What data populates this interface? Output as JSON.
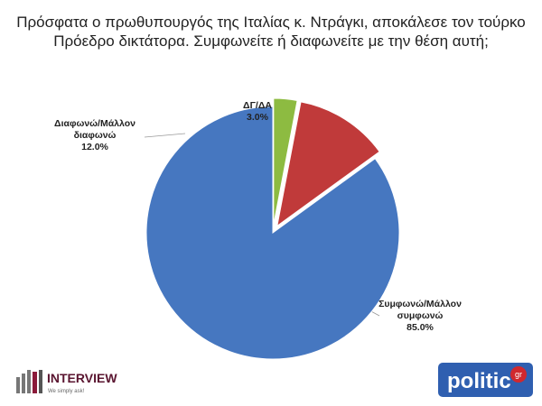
{
  "chart_data": {
    "type": "pie",
    "title": "Πρόσφατα ο πρωθυπουργός της Ιταλίας κ. Ντράγκι, αποκάλεσε τον τούρκο Πρόεδρο δικτάτορα. Συμφωνείτε ή διαφωνείτε με την θέση αυτή;",
    "categories": [
      "Συμφωνώ/Μάλλον συμφωνώ",
      "Διαφωνώ/Μάλλον διαφωνώ",
      "ΔΓ/ΔΑ"
    ],
    "values": [
      85.0,
      12.0,
      3.0
    ],
    "value_labels": [
      "85.0%",
      "12.0%",
      "3.0%"
    ],
    "colors": [
      "#4677c0",
      "#c03a3a",
      "#8dbb41"
    ],
    "exploded": [
      false,
      true,
      true
    ]
  },
  "logos": {
    "interview": "INTERVIEW",
    "interview_tagline": "We simply ask!",
    "politic": "politic",
    "politic_suffix": "gr"
  }
}
